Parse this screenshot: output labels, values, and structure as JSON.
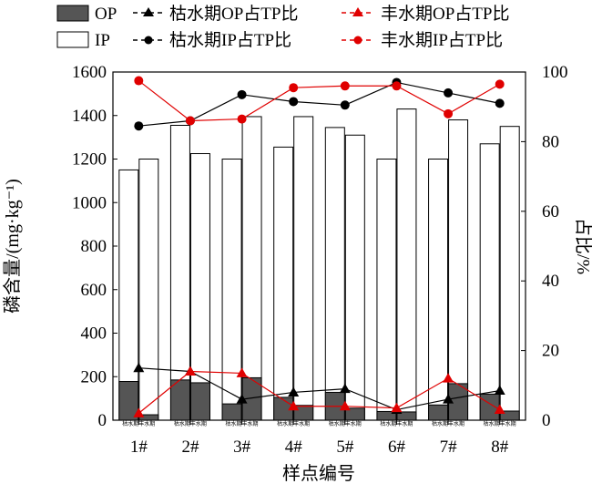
{
  "chart_data": {
    "type": "bar",
    "xlabel": "样点编号",
    "ylabel_left": "磷含量/(mg·kg⁻¹)",
    "ylabel_right": "占比/%",
    "ylim_left": [
      0,
      1600
    ],
    "ylim_right": [
      0,
      100
    ],
    "yticks_left": [
      "0",
      "200",
      "400",
      "600",
      "800",
      "1000",
      "1200",
      "1400",
      "1600"
    ],
    "yticks_right": [
      "0",
      "20",
      "40",
      "60",
      "80",
      "100"
    ],
    "categories": [
      "1#",
      "2#",
      "3#",
      "4#",
      "5#",
      "6#",
      "7#",
      "8#"
    ],
    "sub_labels": [
      "枯水期丰水期",
      "枯水期丰水期",
      "枯水期丰水期",
      "枯水期丰水期",
      "枯水期丰水期",
      "枯水期丰水期",
      "枯水期丰水期",
      "枯水期丰水期"
    ],
    "bar_series": [
      {
        "name": "OP",
        "fill": "#555555",
        "dry": [
          178,
          185,
          75,
          105,
          128,
          40,
          70,
          120
        ],
        "wet": [
          25,
          172,
          195,
          68,
          55,
          38,
          168,
          42
        ]
      },
      {
        "name": "IP",
        "fill": "#ffffff",
        "dry": [
          1150,
          1355,
          1200,
          1255,
          1345,
          1200,
          1200,
          1270
        ],
        "wet": [
          1200,
          1225,
          1395,
          1395,
          1310,
          1430,
          1380,
          1350
        ]
      }
    ],
    "line_series": [
      {
        "name": "枯水期OP占TP比",
        "marker": "triangle",
        "color": "#000000",
        "values": [
          15,
          14,
          6,
          8,
          9,
          3,
          6,
          8.5
        ]
      },
      {
        "name": "丰水期OP占TP比",
        "marker": "triangle",
        "color": "#e00000",
        "values": [
          2,
          14,
          13.5,
          4,
          4,
          3.5,
          12,
          3
        ]
      },
      {
        "name": "枯水期IP占TP比",
        "marker": "circle",
        "color": "#000000",
        "values": [
          84.5,
          86,
          93.5,
          91.5,
          90.5,
          97,
          94,
          91
        ]
      },
      {
        "name": "丰水期IP占TP比",
        "marker": "circle",
        "color": "#e00000",
        "values": [
          97.5,
          86,
          86.5,
          95.5,
          96,
          96,
          88,
          96.5
        ]
      }
    ]
  },
  "legend": {
    "op_label": "OP",
    "ip_label": "IP",
    "dry_op_ratio": "枯水期OP占TP比",
    "wet_op_ratio": "丰水期OP占TP比",
    "dry_ip_ratio": "枯水期IP占TP比",
    "wet_ip_ratio": "丰水期IP占TP比"
  }
}
